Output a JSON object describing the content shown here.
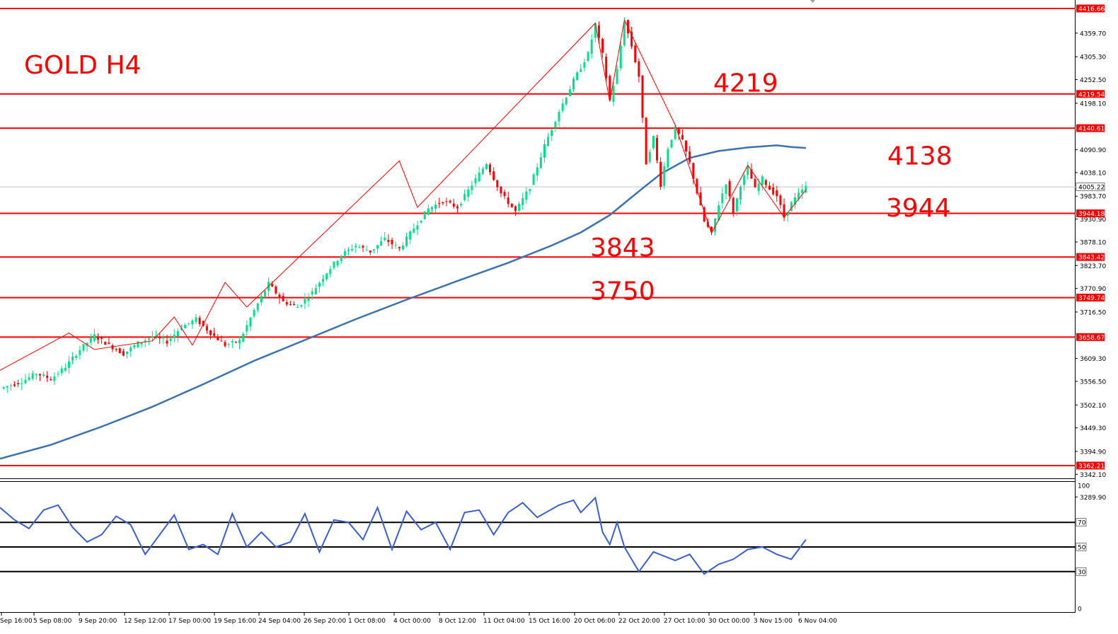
{
  "chart_data": {
    "type": "candlestick",
    "title": "GOLD H4",
    "instrument": "GOLD",
    "timeframe": "H4",
    "current_price": "4005.22",
    "ylim": [
      3240,
      4430
    ],
    "price_ticks": [
      "4359.70",
      "4305.30",
      "4252.50",
      "4198.10",
      "4090.90",
      "4038.10",
      "3983.70",
      "3930.90",
      "3878.10",
      "3823.70",
      "3770.90",
      "3716.50",
      "3609.30",
      "3556.50",
      "3502.10",
      "3449.30",
      "3394.90",
      "3342.10",
      "3289.90"
    ],
    "levels": [
      {
        "value": 4416.66,
        "label": "4416.66"
      },
      {
        "value": 4219.54,
        "label": "4219.54"
      },
      {
        "value": 4140.61,
        "label": "4140.61"
      },
      {
        "value": 3944.18,
        "label": "3944.18"
      },
      {
        "value": 3843.42,
        "label": "3843.42"
      },
      {
        "value": 3749.74,
        "label": "3749.74"
      },
      {
        "value": 3658.67,
        "label": "3658.67"
      },
      {
        "value": 3362.21,
        "label": "3362.21"
      }
    ],
    "annotations": [
      {
        "text": "4219",
        "price": 4248
      },
      {
        "text": "4138",
        "price": 4080
      },
      {
        "text": "3944",
        "price": 3960
      },
      {
        "text": "3843",
        "price": 3868
      },
      {
        "text": "3750",
        "price": 3768
      }
    ],
    "x_labels": [
      "Sep 16:00",
      "5 Sep 08:00",
      "9 Sep 20:00",
      "12 Sep 12:00",
      "17 Sep 00:00",
      "19 Sep 16:00",
      "24 Sep 04:00",
      "26 Sep 20:00",
      "1 Oct 08:00",
      "4 Oct 00:00",
      "8 Oct 12:00",
      "11 Oct 04:00",
      "15 Oct 16:00",
      "20 Oct 06:00",
      "22 Oct 20:00",
      "27 Oct 10:00",
      "30 Oct 00:00",
      "3 Nov 15:00",
      "6 Nov 04:00"
    ],
    "price_path": [
      [
        0,
        3540
      ],
      [
        6,
        3556
      ],
      [
        10,
        3575
      ],
      [
        14,
        3562
      ],
      [
        18,
        3590
      ],
      [
        22,
        3630
      ],
      [
        26,
        3662
      ],
      [
        30,
        3640
      ],
      [
        34,
        3620
      ],
      [
        38,
        3645
      ],
      [
        42,
        3660
      ],
      [
        46,
        3648
      ],
      [
        50,
        3682
      ],
      [
        54,
        3700
      ],
      [
        58,
        3668
      ],
      [
        62,
        3640
      ],
      [
        66,
        3650
      ],
      [
        70,
        3720
      ],
      [
        74,
        3782
      ],
      [
        78,
        3740
      ],
      [
        82,
        3728
      ],
      [
        86,
        3762
      ],
      [
        90,
        3808
      ],
      [
        94,
        3848
      ],
      [
        98,
        3870
      ],
      [
        102,
        3856
      ],
      [
        106,
        3885
      ],
      [
        110,
        3862
      ],
      [
        114,
        3910
      ],
      [
        118,
        3955
      ],
      [
        122,
        3972
      ],
      [
        126,
        3958
      ],
      [
        130,
        4010
      ],
      [
        134,
        4060
      ],
      [
        138,
        3990
      ],
      [
        142,
        3948
      ],
      [
        146,
        4005
      ],
      [
        150,
        4100
      ],
      [
        154,
        4180
      ],
      [
        158,
        4250
      ],
      [
        162,
        4312
      ],
      [
        164,
        4380
      ],
      [
        166,
        4310
      ],
      [
        168,
        4205
      ],
      [
        170,
        4275
      ],
      [
        172,
        4388
      ],
      [
        174,
        4330
      ],
      [
        176,
        4260
      ],
      [
        178,
        4060
      ],
      [
        180,
        4120
      ],
      [
        182,
        4010
      ],
      [
        184,
        4095
      ],
      [
        186,
        4140
      ],
      [
        188,
        4110
      ],
      [
        190,
        4060
      ],
      [
        192,
        3992
      ],
      [
        194,
        3925
      ],
      [
        196,
        3898
      ],
      [
        198,
        3965
      ],
      [
        200,
        4015
      ],
      [
        202,
        3945
      ],
      [
        204,
        4010
      ],
      [
        206,
        4048
      ],
      [
        208,
        4000
      ],
      [
        210,
        4025
      ],
      [
        212,
        4000
      ],
      [
        214,
        3985
      ],
      [
        216,
        3935
      ],
      [
        218,
        3968
      ],
      [
        220,
        3988
      ],
      [
        222,
        4005
      ]
    ],
    "ma_path": [
      [
        0,
        3378
      ],
      [
        14,
        3410
      ],
      [
        28,
        3452
      ],
      [
        42,
        3498
      ],
      [
        56,
        3550
      ],
      [
        70,
        3604
      ],
      [
        84,
        3652
      ],
      [
        98,
        3700
      ],
      [
        112,
        3745
      ],
      [
        126,
        3788
      ],
      [
        140,
        3830
      ],
      [
        152,
        3870
      ],
      [
        160,
        3900
      ],
      [
        168,
        3940
      ],
      [
        176,
        3995
      ],
      [
        182,
        4035
      ],
      [
        190,
        4072
      ],
      [
        198,
        4088
      ],
      [
        206,
        4096
      ],
      [
        214,
        4101
      ],
      [
        218,
        4097
      ],
      [
        222,
        4095
      ]
    ],
    "zigzag": [
      [
        0,
        3582
      ],
      [
        19,
        3668
      ],
      [
        26,
        3630
      ],
      [
        42,
        3650
      ],
      [
        48,
        3705
      ],
      [
        53,
        3640
      ],
      [
        62,
        3785
      ],
      [
        68,
        3728
      ],
      [
        110,
        4065
      ],
      [
        115,
        3958
      ],
      [
        164,
        4383
      ],
      [
        168,
        4202
      ],
      [
        172,
        4390
      ],
      [
        186,
        4148
      ],
      [
        196,
        3898
      ],
      [
        206,
        4055
      ],
      [
        216,
        3935
      ],
      [
        222,
        3998
      ]
    ],
    "rsi": {
      "ylim": [
        0,
        100
      ],
      "levels": [
        70,
        50,
        30
      ],
      "tick_labels": [
        "100",
        "70",
        "50",
        "30",
        "0"
      ],
      "path": [
        [
          0,
          82
        ],
        [
          4,
          72
        ],
        [
          8,
          65
        ],
        [
          12,
          80
        ],
        [
          16,
          84
        ],
        [
          20,
          66
        ],
        [
          24,
          54
        ],
        [
          28,
          60
        ],
        [
          32,
          75
        ],
        [
          36,
          68
        ],
        [
          40,
          44
        ],
        [
          44,
          60
        ],
        [
          48,
          76
        ],
        [
          52,
          48
        ],
        [
          56,
          52
        ],
        [
          60,
          44
        ],
        [
          64,
          77
        ],
        [
          68,
          50
        ],
        [
          72,
          62
        ],
        [
          76,
          50
        ],
        [
          80,
          54
        ],
        [
          84,
          77
        ],
        [
          88,
          46
        ],
        [
          92,
          72
        ],
        [
          96,
          70
        ],
        [
          100,
          56
        ],
        [
          104,
          82
        ],
        [
          108,
          48
        ],
        [
          112,
          79
        ],
        [
          116,
          64
        ],
        [
          120,
          70
        ],
        [
          124,
          48
        ],
        [
          128,
          78
        ],
        [
          132,
          80
        ],
        [
          136,
          60
        ],
        [
          140,
          78
        ],
        [
          144,
          86
        ],
        [
          148,
          74
        ],
        [
          154,
          84
        ],
        [
          158,
          88
        ],
        [
          160,
          78
        ],
        [
          164,
          90
        ],
        [
          166,
          62
        ],
        [
          168,
          52
        ],
        [
          170,
          70
        ],
        [
          172,
          50
        ],
        [
          176,
          30
        ],
        [
          180,
          46
        ],
        [
          186,
          39
        ],
        [
          190,
          44
        ],
        [
          194,
          28
        ],
        [
          198,
          36
        ],
        [
          202,
          40
        ],
        [
          206,
          48
        ],
        [
          210,
          50
        ],
        [
          214,
          44
        ],
        [
          218,
          40
        ],
        [
          222,
          56
        ]
      ]
    }
  }
}
